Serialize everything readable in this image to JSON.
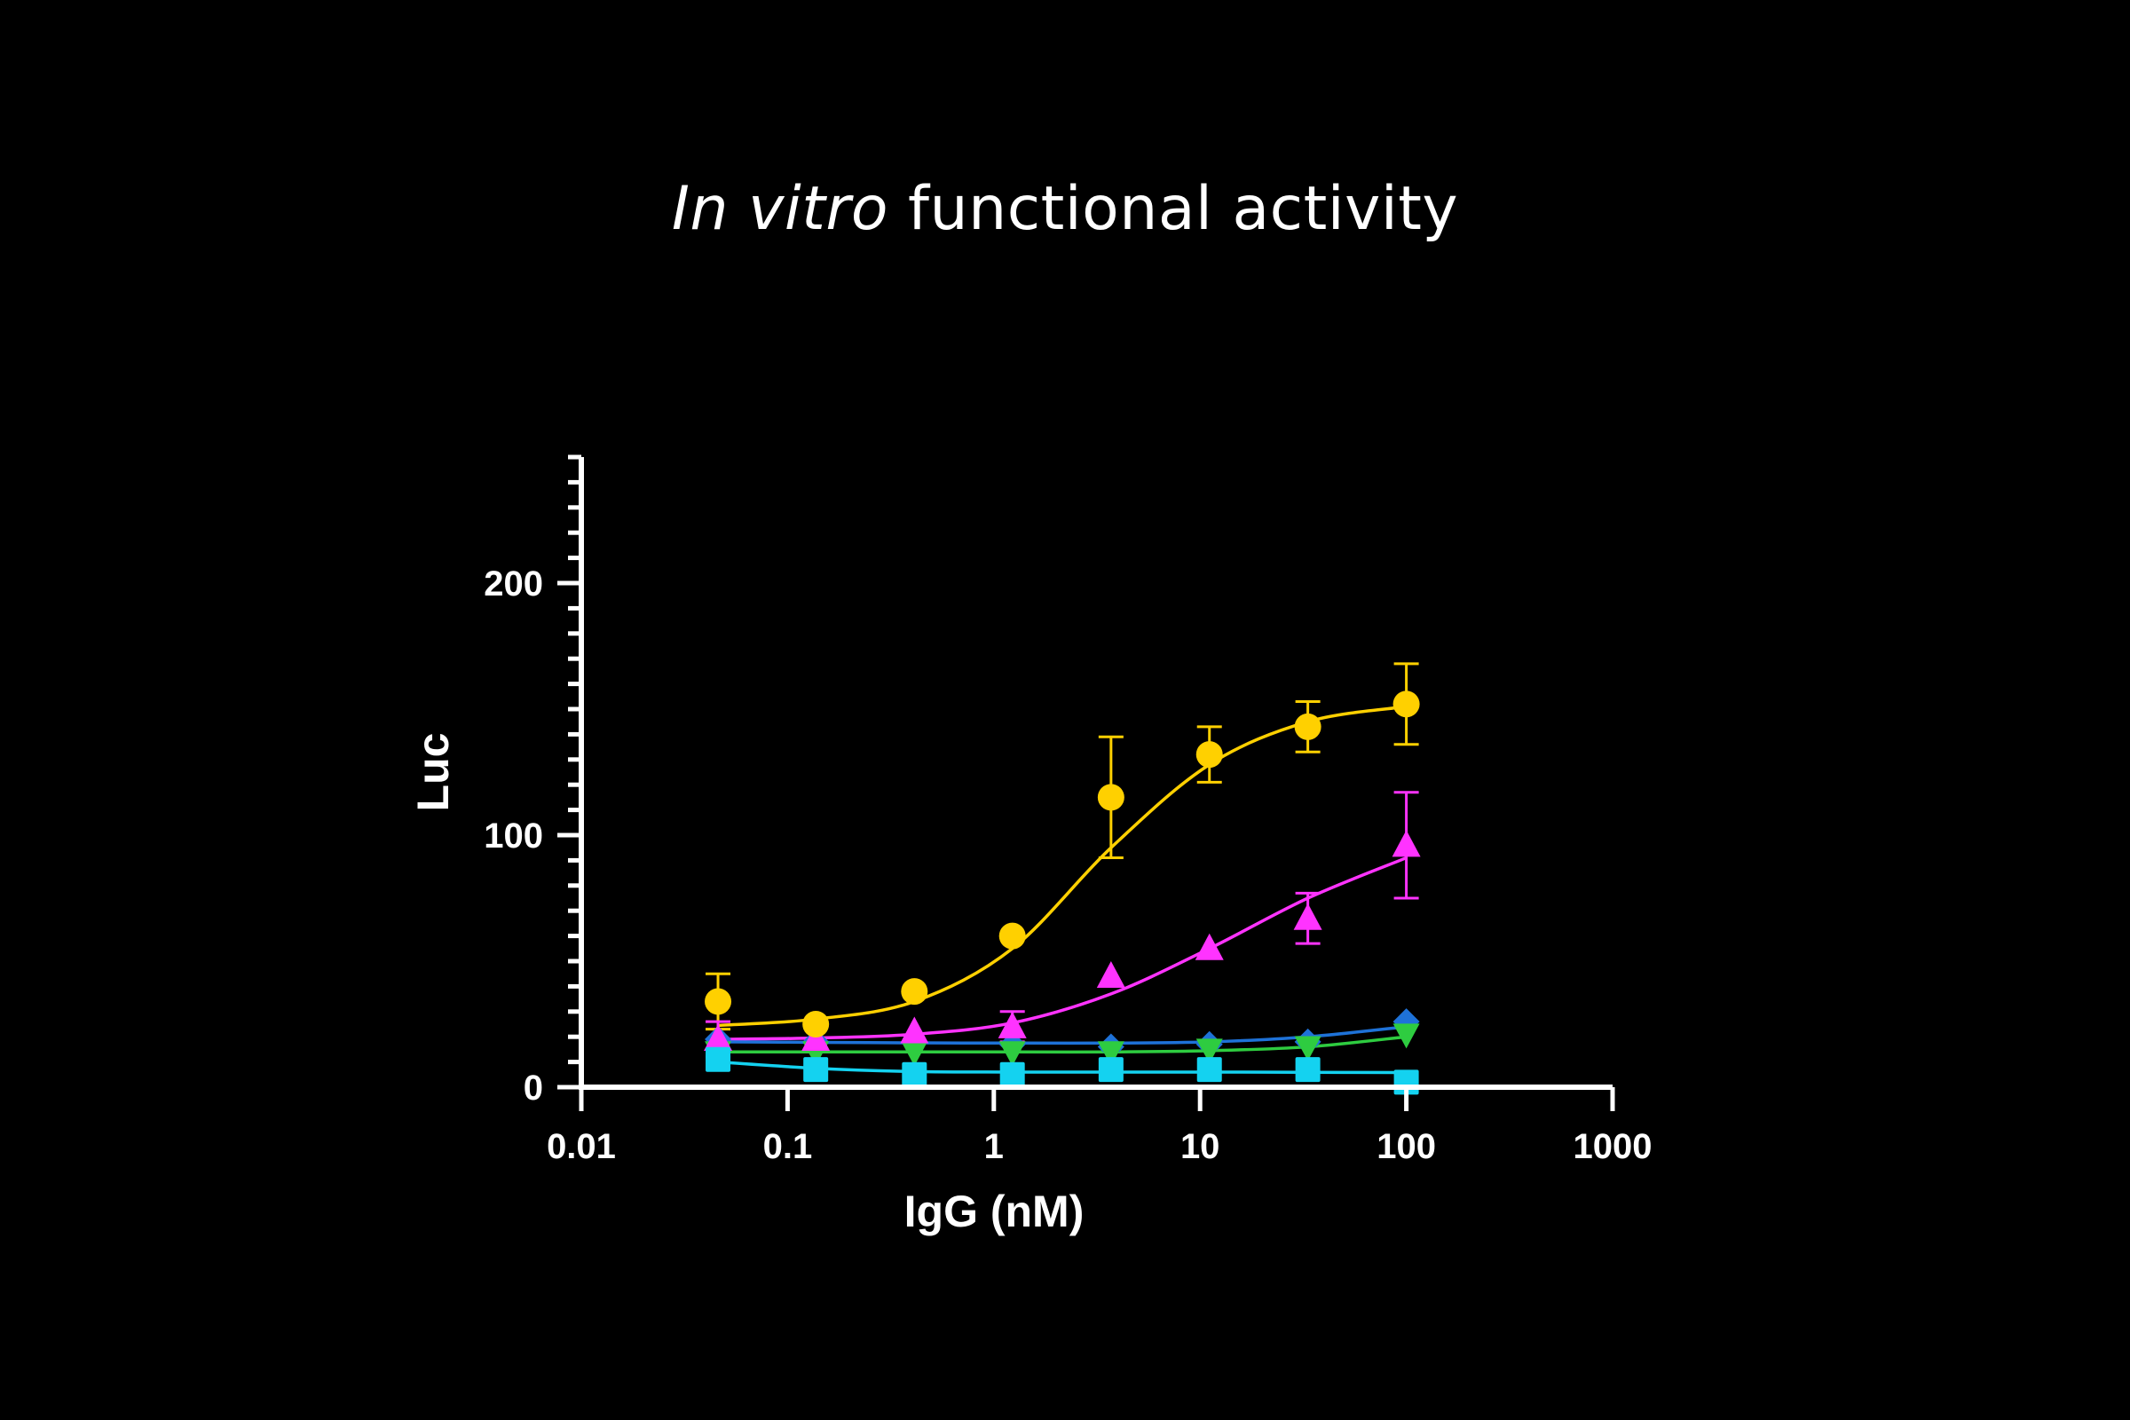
{
  "title": {
    "italic": "In vitro",
    "rest": " functional activity"
  },
  "chart_data": {
    "type": "scatter",
    "xlabel": "IgG (nM)",
    "ylabel": "Luc",
    "xscale": "log",
    "xlim": [
      0.01,
      1000
    ],
    "ylim": [
      0,
      250
    ],
    "x_ticks": [
      0.01,
      0.1,
      1,
      10,
      100,
      1000
    ],
    "x_tick_labels": [
      "0.01",
      "0.1",
      "1",
      "10",
      "100",
      "1000"
    ],
    "y_ticks": [
      0,
      100,
      200
    ],
    "y_tick_labels": [
      "0",
      "100",
      "200"
    ],
    "y_minor_step": 10,
    "grid": false,
    "legend": "none",
    "x": [
      0.046,
      0.137,
      0.412,
      1.23,
      3.7,
      11.1,
      33.3,
      100
    ],
    "series": [
      {
        "marker": "circle",
        "color": "#FFD000",
        "values": [
          34,
          25,
          38,
          60,
          115,
          132,
          143,
          152
        ],
        "errors": [
          11,
          0,
          0,
          0,
          24,
          11,
          10,
          16
        ],
        "fit": [
          24.5,
          27,
          34,
          55,
          95,
          128,
          145,
          151
        ]
      },
      {
        "marker": "triangle-up",
        "color": "#FF33FF",
        "values": [
          19,
          19,
          22,
          24,
          44,
          55,
          67,
          96
        ],
        "errors": [
          7,
          0,
          0,
          6,
          0,
          0,
          10,
          21
        ],
        "fit": [
          19,
          19.5,
          21,
          25.5,
          37,
          55,
          75,
          91
        ]
      },
      {
        "marker": "diamond",
        "color": "#1E72D8",
        "values": [
          19,
          18,
          18,
          17,
          16,
          17,
          18,
          26
        ],
        "errors": [
          0,
          0,
          0,
          0,
          0,
          0,
          0,
          0
        ],
        "fit": [
          18,
          17.8,
          17.6,
          17.5,
          17.5,
          18,
          20,
          24
        ]
      },
      {
        "marker": "triangle-down",
        "color": "#2ECC40",
        "values": [
          14,
          14,
          14,
          14,
          14,
          15,
          16,
          21
        ],
        "errors": [
          0,
          0,
          0,
          0,
          0,
          0,
          0,
          0
        ],
        "fit": [
          14,
          14,
          14,
          14,
          14,
          14.5,
          16,
          20
        ]
      },
      {
        "marker": "square",
        "color": "#14D2F0",
        "values": [
          11,
          7,
          5,
          5,
          7,
          7,
          7,
          2
        ],
        "errors": [
          0,
          0,
          0,
          0,
          0,
          0,
          0,
          0
        ],
        "fit": [
          10,
          7.5,
          6.2,
          6,
          6,
          6,
          5.9,
          5.8
        ]
      }
    ]
  }
}
